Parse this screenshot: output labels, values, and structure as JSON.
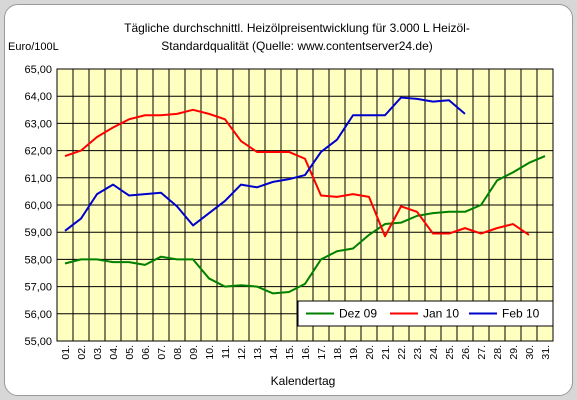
{
  "chart_data": {
    "type": "line",
    "title_lines": [
      "Tägliche durchschnittl. Heizölpreisentwicklung für 3.000 L Heizöl-",
      "Standardqualität (Quelle: www.contentserver24.de)"
    ],
    "ylabel": "Euro/100L",
    "xlabel": "Kalendertag",
    "ylim": [
      55,
      65
    ],
    "yticks": [
      "55,00",
      "56,00",
      "57,00",
      "58,00",
      "59,00",
      "60,00",
      "61,00",
      "62,00",
      "63,00",
      "64,00",
      "65,00"
    ],
    "categories": [
      "01.",
      "02.",
      "03.",
      "04.",
      "05.",
      "06.",
      "07.",
      "08.",
      "09.",
      "10.",
      "11.",
      "12.",
      "13.",
      "14.",
      "15.",
      "16.",
      "17.",
      "18.",
      "19.",
      "20.",
      "21.",
      "22.",
      "23.",
      "24.",
      "25.",
      "26.",
      "27.",
      "28.",
      "29.",
      "30.",
      "31."
    ],
    "grid": true,
    "legend_position": "bottom-right",
    "plot_background": "#ffffc0",
    "series": [
      {
        "name": "Dez 09",
        "color": "#008000",
        "values": [
          57.85,
          58.0,
          58.0,
          57.9,
          57.9,
          57.8,
          58.1,
          58.0,
          58.0,
          57.3,
          57.0,
          57.05,
          57.0,
          56.75,
          56.8,
          57.1,
          58.0,
          58.3,
          58.4,
          58.9,
          59.3,
          59.35,
          59.6,
          59.7,
          59.75,
          59.75,
          60.0,
          60.9,
          61.2,
          61.55,
          61.8
        ]
      },
      {
        "name": "Jan 10",
        "color": "#ff0000",
        "values": [
          61.8,
          62.0,
          62.5,
          62.85,
          63.15,
          63.3,
          63.3,
          63.35,
          63.5,
          63.35,
          63.15,
          62.35,
          61.95,
          61.95,
          61.95,
          61.7,
          60.35,
          60.3,
          60.4,
          60.3,
          58.85,
          59.95,
          59.75,
          58.95,
          58.95,
          59.15,
          58.95,
          59.15,
          59.3,
          58.9,
          null
        ]
      },
      {
        "name": "Feb 10",
        "color": "#0000cc",
        "values": [
          59.05,
          59.5,
          60.4,
          60.75,
          60.35,
          60.4,
          60.45,
          59.95,
          59.25,
          59.7,
          60.15,
          60.75,
          60.65,
          60.85,
          60.95,
          61.1,
          61.95,
          62.4,
          63.3,
          63.3,
          63.3,
          63.95,
          63.9,
          63.8,
          63.85,
          63.35,
          null,
          null,
          null,
          null,
          null
        ]
      }
    ]
  }
}
